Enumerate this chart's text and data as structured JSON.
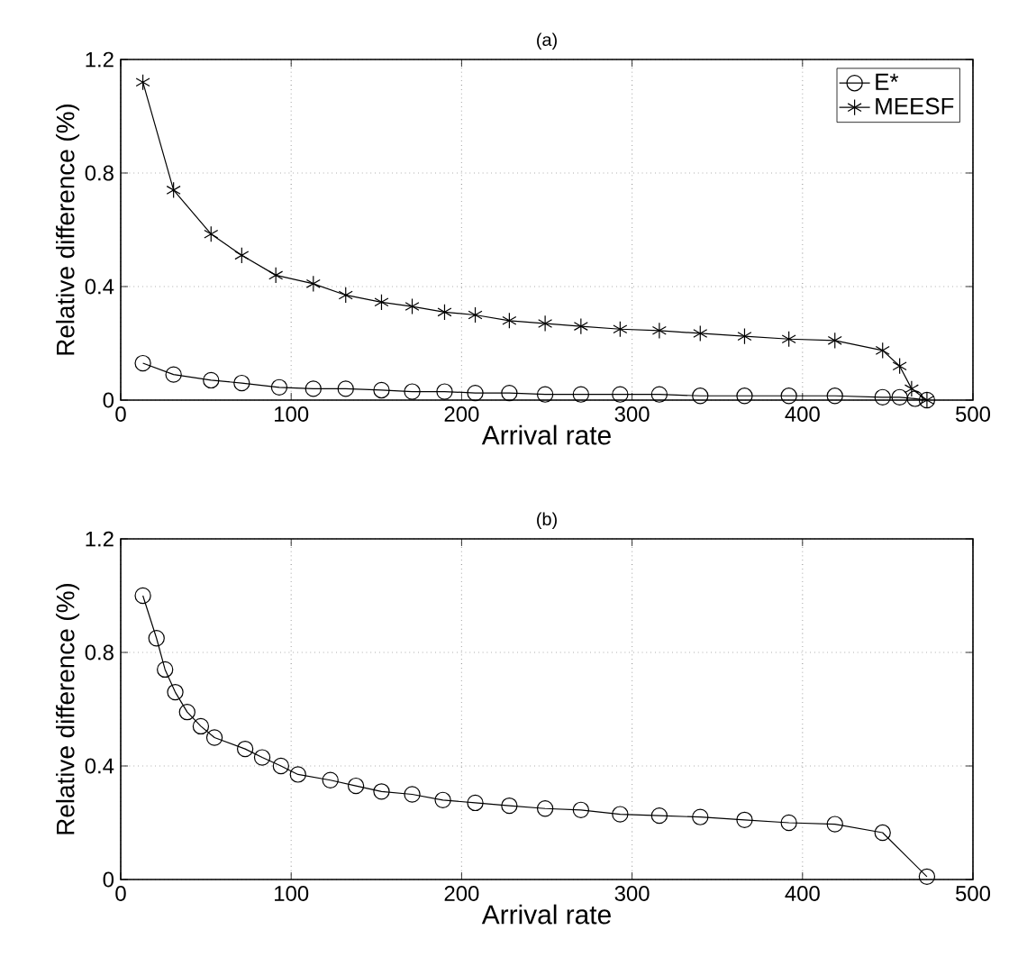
{
  "chart_data": [
    {
      "type": "line",
      "title": "(a)",
      "xlabel": "Arrival rate",
      "ylabel": "Relative difference (%)",
      "xlim": [
        0,
        500
      ],
      "ylim": [
        0,
        1.2
      ],
      "xticks": [
        0,
        100,
        200,
        300,
        400,
        500
      ],
      "yticks": [
        0,
        0.4,
        0.8,
        1.2
      ],
      "grid": true,
      "legend": "top right",
      "series": [
        {
          "name": "E*",
          "color": "#000000",
          "marker": "circle",
          "x": [
            13,
            31,
            53,
            71,
            93,
            113,
            132,
            153,
            171,
            190,
            208,
            228,
            249,
            270,
            293,
            316,
            340,
            366,
            392,
            419,
            447,
            457,
            466,
            473
          ],
          "values": [
            0.13,
            0.09,
            0.07,
            0.06,
            0.045,
            0.04,
            0.04,
            0.035,
            0.03,
            0.03,
            0.025,
            0.025,
            0.02,
            0.02,
            0.02,
            0.02,
            0.015,
            0.015,
            0.015,
            0.015,
            0.01,
            0.01,
            0.005,
            0
          ]
        },
        {
          "name": "MEESF",
          "color": "#000000",
          "marker": "cross",
          "x": [
            13,
            31,
            53,
            71,
            91,
            113,
            132,
            153,
            171,
            190,
            208,
            228,
            249,
            270,
            293,
            316,
            340,
            366,
            392,
            419,
            447,
            457,
            464,
            473
          ],
          "values": [
            1.12,
            0.74,
            0.585,
            0.51,
            0.44,
            0.41,
            0.37,
            0.345,
            0.33,
            0.31,
            0.3,
            0.28,
            0.27,
            0.26,
            0.25,
            0.245,
            0.235,
            0.225,
            0.215,
            0.21,
            0.175,
            0.12,
            0.04,
            0
          ]
        }
      ]
    },
    {
      "type": "line",
      "title": "(b)",
      "xlabel": "Arrival rate",
      "ylabel": "Relative difference (%)",
      "xlim": [
        0,
        500
      ],
      "ylim": [
        0,
        1.2
      ],
      "xticks": [
        0,
        100,
        200,
        300,
        400,
        500
      ],
      "yticks": [
        0,
        0.4,
        0.8,
        1.2
      ],
      "grid": true,
      "series": [
        {
          "color": "#000000",
          "marker": "circle",
          "x": [
            13,
            21,
            26,
            32,
            39,
            47,
            55,
            73,
            83,
            94,
            104,
            123,
            138,
            153,
            171,
            189,
            208,
            228,
            249,
            270,
            293,
            316,
            340,
            366,
            392,
            419,
            447,
            473
          ],
          "values": [
            1.0,
            0.85,
            0.74,
            0.66,
            0.59,
            0.54,
            0.5,
            0.46,
            0.43,
            0.4,
            0.37,
            0.35,
            0.33,
            0.31,
            0.3,
            0.28,
            0.27,
            0.26,
            0.25,
            0.245,
            0.23,
            0.225,
            0.22,
            0.21,
            0.2,
            0.195,
            0.165,
            0.01
          ]
        }
      ]
    }
  ]
}
